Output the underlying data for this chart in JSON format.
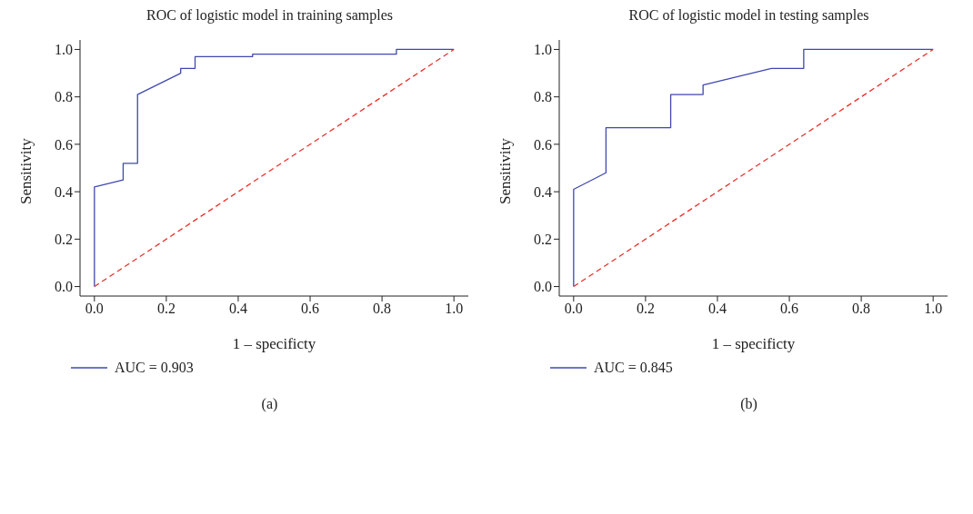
{
  "chart_data": [
    {
      "type": "line",
      "title": "ROC of logistic model in training samples",
      "xlabel": "1 – specificty",
      "ylabel": "Sensitivity",
      "xlim": [
        -0.04,
        1.04
      ],
      "ylim": [
        -0.04,
        1.04
      ],
      "xticks": [
        {
          "value": 0,
          "label": "0.0"
        },
        {
          "value": 0.2,
          "label": "0.2"
        },
        {
          "value": 0.4,
          "label": "0.4"
        },
        {
          "value": 0.6,
          "label": "0.6"
        },
        {
          "value": 0.8,
          "label": "0.8"
        },
        {
          "value": 1,
          "label": "1.0"
        }
      ],
      "yticks": [
        {
          "value": 0,
          "label": "0.0"
        },
        {
          "value": 0.2,
          "label": "0.2"
        },
        {
          "value": 0.4,
          "label": "0.4"
        },
        {
          "value": 0.6,
          "label": "0.6"
        },
        {
          "value": 0.8,
          "label": "0.8"
        },
        {
          "value": 1,
          "label": "1.0"
        }
      ],
      "grid": false,
      "legend": "bottom left",
      "annotations": [
        "(a)"
      ],
      "series": [
        {
          "name": "AUC = 0.903",
          "color": "#3f48b0",
          "x": [
            0,
            0,
            0.08,
            0.08,
            0.12,
            0.12,
            0.24,
            0.24,
            0.28,
            0.28,
            0.44,
            0.44,
            0.84,
            0.84,
            1
          ],
          "values": [
            0,
            0.42,
            0.45,
            0.52,
            0.52,
            0.81,
            0.9,
            0.92,
            0.92,
            0.97,
            0.97,
            0.98,
            0.98,
            1,
            1
          ]
        },
        {
          "color": "#e8312a",
          "line_style": "dashed",
          "x": [
            0,
            1
          ],
          "values": [
            0,
            1
          ]
        }
      ]
    },
    {
      "type": "line",
      "title": "ROC of logistic model in testing samples",
      "xlabel": "1 – specificty",
      "ylabel": "Sensitivity",
      "xlim": [
        -0.04,
        1.04
      ],
      "ylim": [
        -0.04,
        1.04
      ],
      "xticks": [
        {
          "value": 0,
          "label": "0.0"
        },
        {
          "value": 0.2,
          "label": "0.2"
        },
        {
          "value": 0.4,
          "label": "0.4"
        },
        {
          "value": 0.6,
          "label": "0.6"
        },
        {
          "value": 0.8,
          "label": "0.8"
        },
        {
          "value": 1,
          "label": "1.0"
        }
      ],
      "yticks": [
        {
          "value": 0,
          "label": "0.0"
        },
        {
          "value": 0.2,
          "label": "0.2"
        },
        {
          "value": 0.4,
          "label": "0.4"
        },
        {
          "value": 0.6,
          "label": "0.6"
        },
        {
          "value": 0.8,
          "label": "0.8"
        },
        {
          "value": 1,
          "label": "1.0"
        }
      ],
      "grid": false,
      "legend": "bottom left",
      "annotations": [
        "(b)"
      ],
      "series": [
        {
          "name": "AUC = 0.845",
          "color": "#3f48b0",
          "x": [
            0,
            0,
            0.09,
            0.09,
            0.27,
            0.27,
            0.36,
            0.36,
            0.55,
            0.64,
            0.64,
            1
          ],
          "values": [
            0,
            0.41,
            0.48,
            0.67,
            0.67,
            0.81,
            0.81,
            0.85,
            0.92,
            0.92,
            1,
            1
          ]
        },
        {
          "color": "#e8312a",
          "line_style": "dashed",
          "x": [
            0,
            1
          ],
          "values": [
            0,
            1
          ]
        }
      ]
    }
  ]
}
